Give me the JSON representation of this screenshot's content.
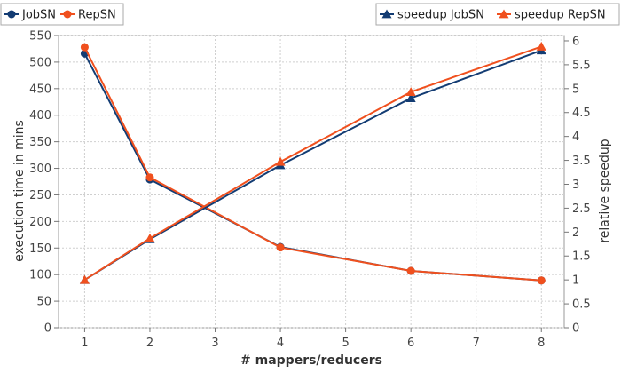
{
  "chart_data": {
    "type": "line",
    "xlabel": "# mappers/reducers",
    "ylabel_left": "execution time in mins",
    "ylabel_right": "relative speedup",
    "xlim": [
      0.6,
      8.35
    ],
    "ylim_left": [
      0,
      550
    ],
    "ylim_right": [
      0,
      6.111
    ],
    "x_ticks": [
      1,
      2,
      3,
      4,
      5,
      6,
      7,
      8
    ],
    "y_ticks_left": [
      0,
      50,
      100,
      150,
      200,
      250,
      300,
      350,
      400,
      450,
      500,
      550
    ],
    "y_ticks_right": [
      "0",
      "0.5",
      "1",
      "1.5",
      "2",
      "2.5",
      "3",
      "3.5",
      "4",
      "4.5",
      "5",
      "5.5",
      "6"
    ],
    "grid": true,
    "x": [
      1,
      2,
      4,
      6,
      8
    ],
    "series": [
      {
        "name": "JobSN",
        "axis": "left",
        "marker": "circle",
        "color": "#133c73",
        "values": [
          516,
          279,
          152,
          107,
          89
        ]
      },
      {
        "name": "RepSN",
        "axis": "left",
        "marker": "circle",
        "color": "#f0501e",
        "values": [
          528,
          283,
          151,
          107,
          89
        ]
      },
      {
        "name": "speedup JobSN",
        "axis": "right",
        "marker": "triangle",
        "color": "#133c73",
        "values": [
          1.0,
          1.85,
          3.4,
          4.8,
          5.8
        ]
      },
      {
        "name": "speedup RepSN",
        "axis": "right",
        "marker": "triangle",
        "color": "#f0501e",
        "values": [
          1.0,
          1.87,
          3.47,
          4.93,
          5.88
        ]
      }
    ],
    "legend_left": [
      "JobSN",
      "RepSN"
    ],
    "legend_right": [
      "speedup JobSN",
      "speedup RepSN"
    ],
    "legend_placement": "top"
  }
}
